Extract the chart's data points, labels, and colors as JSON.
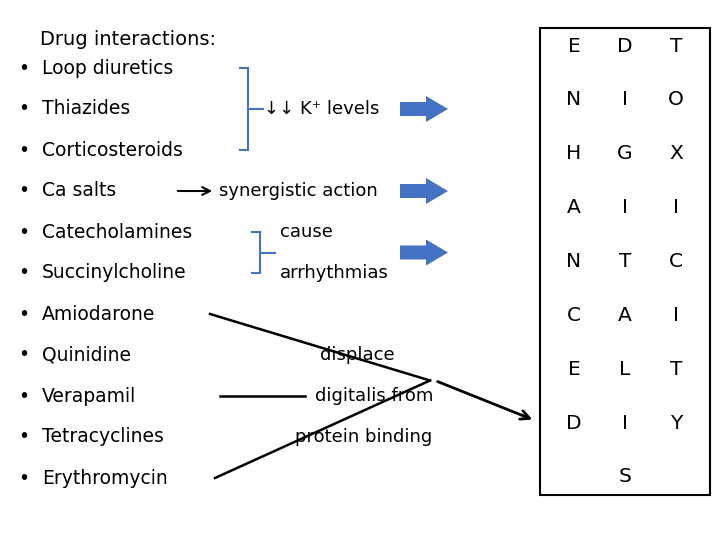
{
  "title": "Drug interactions:",
  "bullet_items": [
    "Loop diuretics",
    "Thiazides",
    "Corticosteroids",
    "Ca salts",
    "Catecholamines",
    "Succinylcholine",
    "Amiodarone",
    "Quinidine",
    "Verapamil",
    "Tetracyclines",
    "Erythromycin"
  ],
  "bg_color": "#ffffff",
  "text_color": "#000000",
  "arrow_color": "#4472c4",
  "bracket_color": "#4472c4",
  "box_col1": [
    "E",
    "N",
    "H",
    "A",
    "N",
    "C",
    "E",
    "D"
  ],
  "box_col2": [
    "D",
    "I",
    "G",
    "I",
    "T",
    "A",
    "L",
    "I",
    "S"
  ],
  "box_col3": [
    "T",
    "O",
    "X",
    "I",
    "C",
    "I",
    "T",
    "Y"
  ],
  "figsize": [
    7.2,
    5.4
  ],
  "dpi": 100
}
